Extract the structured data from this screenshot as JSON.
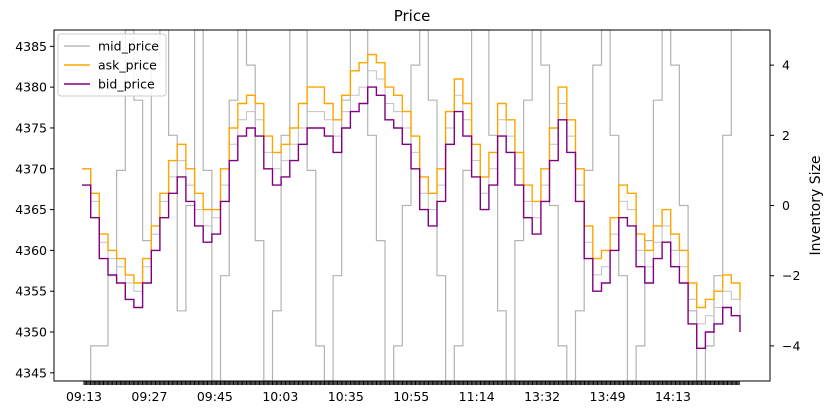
{
  "chart_data": {
    "type": "line",
    "title": "Price",
    "ylabel_left": "",
    "ylabel_right": "Inventory Size",
    "xlabel": "",
    "x_tick_labels": [
      "09:13",
      "09:27",
      "09:45",
      "10:03",
      "10:35",
      "10:55",
      "11:14",
      "13:32",
      "13:49",
      "14:13"
    ],
    "y_left_ticks": [
      4345,
      4350,
      4355,
      4360,
      4365,
      4370,
      4375,
      4380,
      4385
    ],
    "y_left_range": [
      4344,
      4387
    ],
    "y_right_ticks": [
      -4,
      -2,
      0,
      2,
      4
    ],
    "y_right_range": [
      -5,
      5
    ],
    "legend_position": "top-left",
    "legend": [
      "mid_price",
      "ask_price",
      "bid_price"
    ],
    "series": [
      {
        "name": "mid_price",
        "color": "#bbbbbb",
        "axis": "left",
        "values": [
          4370,
          4366,
          4361,
          4359,
          4358,
          4356,
          4355,
          4358,
          4362,
          4366,
          4369,
          4371,
          4368,
          4365,
          4363,
          4364,
          4368,
          4373,
          4376,
          4377,
          4376,
          4372,
          4370,
          4371,
          4373,
          4375,
          4377,
          4377,
          4376,
          4374,
          4377,
          4379,
          4380,
          4382,
          4381,
          4378,
          4377,
          4375,
          4372,
          4367,
          4365,
          4368,
          4375,
          4379,
          4376,
          4371,
          4367,
          4370,
          4376,
          4374,
          4370,
          4366,
          4364,
          4368,
          4373,
          4378,
          4374,
          4368,
          4361,
          4357,
          4358,
          4362,
          4366,
          4365,
          4360,
          4358,
          4361,
          4363,
          4360,
          4358,
          4354,
          4351,
          4352,
          4353,
          4355,
          4354,
          4352
        ]
      },
      {
        "name": "ask_price",
        "color": "#ffa500",
        "axis": "left",
        "values": [
          4370,
          4367,
          4362,
          4360,
          4359,
          4357,
          4356,
          4359,
          4363,
          4367,
          4371,
          4373,
          4370,
          4367,
          4365,
          4365,
          4370,
          4375,
          4378,
          4379,
          4378,
          4374,
          4372,
          4373,
          4375,
          4378,
          4380,
          4380,
          4378,
          4376,
          4379,
          4382,
          4383,
          4384,
          4383,
          4380,
          4379,
          4377,
          4374,
          4369,
          4367,
          4370,
          4377,
          4381,
          4378,
          4373,
          4369,
          4372,
          4378,
          4376,
          4372,
          4368,
          4366,
          4370,
          4375,
          4380,
          4376,
          4370,
          4363,
          4359,
          4360,
          4364,
          4368,
          4367,
          4362,
          4360,
          4363,
          4365,
          4362,
          4360,
          4356,
          4353,
          4354,
          4355,
          4357,
          4356,
          4354
        ]
      },
      {
        "name": "bid_price",
        "color": "#800080",
        "axis": "left",
        "values": [
          4368,
          4364,
          4359,
          4357,
          4356,
          4354,
          4353,
          4356,
          4360,
          4364,
          4367,
          4369,
          4366,
          4363,
          4361,
          4362,
          4366,
          4371,
          4374,
          4375,
          4374,
          4370,
          4368,
          4369,
          4371,
          4373,
          4375,
          4375,
          4374,
          4372,
          4375,
          4377,
          4378,
          4380,
          4379,
          4376,
          4375,
          4373,
          4370,
          4365,
          4363,
          4366,
          4373,
          4377,
          4374,
          4369,
          4365,
          4368,
          4374,
          4372,
          4368,
          4364,
          4362,
          4366,
          4371,
          4376,
          4372,
          4366,
          4359,
          4355,
          4356,
          4360,
          4364,
          4363,
          4358,
          4356,
          4359,
          4361,
          4358,
          4356,
          4351,
          4348,
          4350,
          4351,
          4353,
          4352,
          4350
        ]
      },
      {
        "name": "inventory",
        "color": "#b3b3b3",
        "axis": "right",
        "values": [
          -5,
          -4,
          -4,
          -2,
          1,
          5,
          3,
          -1,
          4,
          5,
          2,
          -3,
          0,
          5,
          1,
          -5,
          -2,
          3,
          5,
          4,
          -1,
          -5,
          -3,
          2,
          5,
          5,
          1,
          -4,
          -5,
          -2,
          3,
          5,
          5,
          2,
          -1,
          -5,
          -4,
          0,
          4,
          5,
          3,
          -2,
          -5,
          -4,
          1,
          5,
          5,
          2,
          -3,
          -5,
          -1,
          3,
          5,
          4,
          0,
          -4,
          -5,
          -3,
          1,
          4,
          5,
          2,
          -2,
          -5,
          -4,
          -1,
          3,
          5,
          4,
          0,
          -3,
          -5,
          -4,
          -2,
          2,
          5,
          5
        ]
      }
    ]
  }
}
